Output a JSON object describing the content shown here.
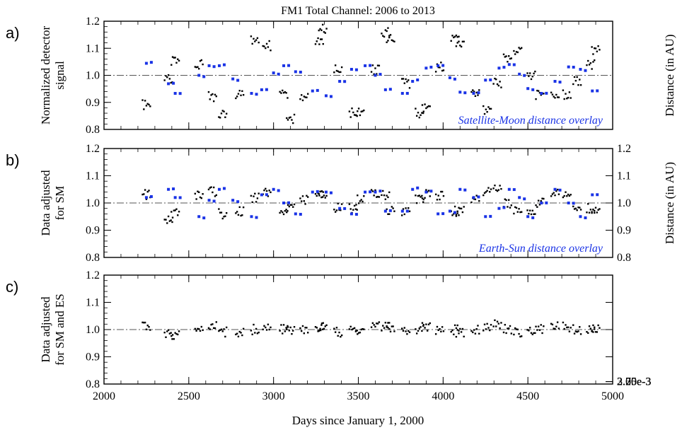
{
  "title": "FM1 Total Channel:  2006 to 2013",
  "xlabel": "Days since January 1, 2000",
  "colors": {
    "data": "#000000",
    "overlay": "#1a33e6",
    "refline": "#555555"
  },
  "panels": [
    {
      "label": "a)",
      "ylabel": [
        "Normalized detector",
        "signal"
      ],
      "right_label": "Distance (in AU)",
      "right_ticks": [
        "2.25e-3",
        "2.50e-3",
        "2.75e-3",
        "3.00e-3"
      ],
      "overlay_note": "Satellite-Moon distance overlay"
    },
    {
      "label": "b)",
      "ylabel": [
        "Data adjusted",
        "for SM"
      ],
      "right_label": "Distance (in AU)",
      "right_ticks": [
        "0.8",
        "0.9",
        "1.0",
        "1.1",
        "1.2"
      ],
      "overlay_note": "Earth-Sun distance overlay"
    },
    {
      "label": "c)",
      "ylabel": [
        "Data adjusted",
        "for SM and ES"
      ],
      "right_label": "",
      "right_ticks": [],
      "overlay_note": ""
    }
  ],
  "chart_data": [
    {
      "type": "scatter",
      "panel": "a",
      "xlim": [
        2000,
        5000
      ],
      "ylim": [
        0.8,
        1.2
      ],
      "x_ticks": [
        2000,
        2500,
        3000,
        3500,
        4000,
        4500,
        5000
      ],
      "y_ticks": [
        "0.8",
        "0.9",
        "1.0",
        "1.1",
        "1.2"
      ],
      "reference_line": 1.0,
      "series": [
        {
          "role": "detector",
          "axis": "left",
          "x": [
            2250,
            2380,
            2420,
            2560,
            2640,
            2700,
            2800,
            2890,
            2960,
            3060,
            3100,
            3180,
            3270,
            3290,
            3380,
            3470,
            3510,
            3600,
            3660,
            3690,
            3780,
            3860,
            3900,
            3980,
            4070,
            4100,
            4190,
            4260,
            4320,
            4380,
            4440,
            4520,
            4570,
            4660,
            4730,
            4790,
            4870,
            4900
          ],
          "y": [
            0.89,
            0.99,
            1.05,
            1.04,
            0.92,
            0.86,
            0.93,
            1.13,
            1.11,
            0.93,
            0.84,
            0.92,
            1.13,
            1.17,
            1.02,
            0.86,
            0.87,
            1.02,
            1.16,
            1.14,
            0.97,
            0.86,
            0.88,
            1.03,
            1.14,
            1.11,
            0.94,
            0.87,
            0.97,
            1.06,
            1.09,
            1.0,
            0.93,
            0.92,
            0.93,
            0.98,
            1.04,
            1.09
          ]
        },
        {
          "role": "satellite-moon-distance",
          "axis": "right",
          "ylim": [
            2.1,
            3.0
          ],
          "x": [
            2250,
            2380,
            2420,
            2560,
            2620,
            2680,
            2760,
            2870,
            2930,
            3000,
            3060,
            3130,
            3230,
            3310,
            3390,
            3460,
            3540,
            3600,
            3660,
            3760,
            3820,
            3900,
            3970,
            4040,
            4100,
            4180,
            4250,
            4330,
            4390,
            4450,
            4500,
            4580,
            4660,
            4740,
            4810,
            4880
          ],
          "y": [
            2.65,
            2.48,
            2.4,
            2.55,
            2.63,
            2.63,
            2.52,
            2.4,
            2.43,
            2.57,
            2.63,
            2.58,
            2.42,
            2.38,
            2.5,
            2.6,
            2.63,
            2.55,
            2.43,
            2.4,
            2.5,
            2.61,
            2.63,
            2.53,
            2.41,
            2.4,
            2.51,
            2.61,
            2.64,
            2.56,
            2.44,
            2.4,
            2.5,
            2.62,
            2.6,
            2.42
          ]
        }
      ]
    },
    {
      "type": "scatter",
      "panel": "b",
      "xlim": [
        2000,
        5000
      ],
      "ylim": [
        0.8,
        1.2
      ],
      "x_ticks": [
        2000,
        2500,
        3000,
        3500,
        4000,
        4500,
        5000
      ],
      "y_ticks": [
        "0.8",
        "0.9",
        "1.0",
        "1.1",
        "1.2"
      ],
      "reference_line": 1.0,
      "series": [
        {
          "role": "detector",
          "axis": "left",
          "x": [
            2250,
            2380,
            2420,
            2560,
            2640,
            2700,
            2800,
            2890,
            2960,
            3060,
            3100,
            3180,
            3270,
            3290,
            3380,
            3470,
            3510,
            3600,
            3660,
            3690,
            3780,
            3860,
            3900,
            3980,
            4070,
            4100,
            4190,
            4260,
            4320,
            4380,
            4440,
            4520,
            4570,
            4660,
            4730,
            4790,
            4870,
            4900
          ],
          "y": [
            1.03,
            0.94,
            0.96,
            1.03,
            1.04,
            0.96,
            0.97,
            1.02,
            1.04,
            0.97,
            0.98,
            1.01,
            1.04,
            1.03,
            0.98,
            0.98,
            1.01,
            1.03,
            1.03,
            0.97,
            0.97,
            1.01,
            1.03,
            1.03,
            0.97,
            0.97,
            1.01,
            1.04,
            1.05,
            1.0,
            0.97,
            0.97,
            1.0,
            1.04,
            1.03,
            0.98,
            0.98,
            0.97
          ]
        },
        {
          "role": "earth-sun-distance",
          "axis": "right",
          "ylim": [
            0.8,
            1.2
          ],
          "x": [
            2250,
            2380,
            2420,
            2560,
            2620,
            2680,
            2760,
            2870,
            2930,
            3000,
            3060,
            3130,
            3230,
            3310,
            3390,
            3460,
            3540,
            3600,
            3660,
            3760,
            3820,
            3900,
            3970,
            4040,
            4100,
            4180,
            4250,
            4330,
            4390,
            4450,
            4500,
            4580,
            4660,
            4740,
            4810,
            4880
          ],
          "y": [
            1.02,
            1.05,
            1.02,
            0.95,
            1.01,
            1.05,
            1.01,
            0.95,
            1.03,
            1.05,
            1.0,
            0.96,
            1.04,
            1.04,
            0.98,
            0.96,
            1.04,
            1.04,
            0.97,
            0.97,
            1.05,
            1.04,
            0.96,
            0.97,
            1.05,
            1.02,
            0.95,
            0.98,
            1.05,
            1.02,
            0.95,
            1.0,
            1.05,
            1.0,
            0.95,
            1.03
          ]
        }
      ]
    },
    {
      "type": "scatter",
      "panel": "c",
      "xlim": [
        2000,
        5000
      ],
      "ylim": [
        0.8,
        1.2
      ],
      "x_ticks": [
        2000,
        2500,
        3000,
        3500,
        4000,
        4500,
        5000
      ],
      "y_ticks": [
        "0.8",
        "0.9",
        "1.0",
        "1.1",
        "1.2"
      ],
      "reference_line": 1.0,
      "series": [
        {
          "role": "detector",
          "axis": "left",
          "x": [
            2250,
            2380,
            2420,
            2560,
            2640,
            2700,
            2800,
            2890,
            2960,
            3060,
            3100,
            3180,
            3270,
            3290,
            3380,
            3470,
            3510,
            3600,
            3660,
            3690,
            3780,
            3860,
            3900,
            3980,
            4070,
            4100,
            4190,
            4260,
            4320,
            4380,
            4440,
            4520,
            4570,
            4660,
            4730,
            4790,
            4870,
            4900
          ],
          "y": [
            1.01,
            0.98,
            0.98,
            1.0,
            1.01,
            0.99,
            0.99,
            1.0,
            1.01,
            1.0,
            1.0,
            1.0,
            1.01,
            1.0,
            0.99,
            1.0,
            1.0,
            1.01,
            1.01,
            1.0,
            0.99,
            1.0,
            1.01,
            1.0,
            1.0,
            0.99,
            1.0,
            1.01,
            1.02,
            1.0,
            0.99,
            0.99,
            1.0,
            1.02,
            1.01,
            1.0,
            1.0,
            1.0
          ]
        }
      ]
    }
  ]
}
